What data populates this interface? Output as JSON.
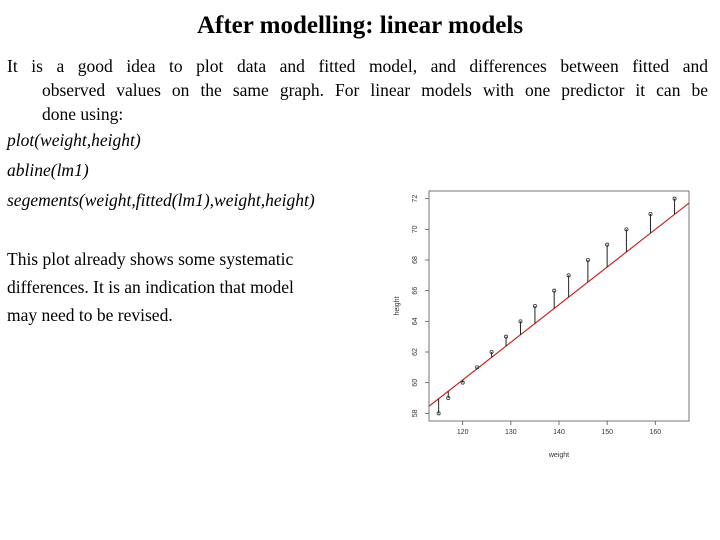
{
  "slide": {
    "title": "After modelling: linear models",
    "intro_lines": [
      "It is a good idea to plot data and fitted model, and differences between fitted and",
      "observed values on the same graph. For linear models with one predictor it can be",
      "done using:"
    ],
    "code_lines": [
      "plot(weight,height)",
      "abline(lm1)",
      "segements(weight,fitted(lm1),weight,height)"
    ],
    "note_lines": [
      "This plot already shows some systematic",
      "differences. It is an indication that model",
      "may need to be revised."
    ]
  },
  "chart_data": {
    "type": "scatter",
    "xlabel": "weight",
    "ylabel": "height",
    "xlim": [
      113,
      167
    ],
    "ylim": [
      57.5,
      72.5
    ],
    "xticks": [
      120,
      130,
      140,
      150,
      160
    ],
    "yticks": [
      58,
      60,
      62,
      64,
      66,
      68,
      70,
      72
    ],
    "points": {
      "x": [
        115,
        117,
        120,
        123,
        126,
        129,
        132,
        135,
        139,
        142,
        146,
        150,
        154,
        159,
        164
      ],
      "y": [
        58,
        59,
        60,
        61,
        62,
        63,
        64,
        65,
        66,
        67,
        68,
        69,
        70,
        71,
        72
      ]
    },
    "fit_line": {
      "intercept": 30.73,
      "slope": 0.2454
    },
    "grid": false,
    "colors": {
      "points": "#333333",
      "fit_line": "#cc2222",
      "segments": "#222222"
    }
  }
}
